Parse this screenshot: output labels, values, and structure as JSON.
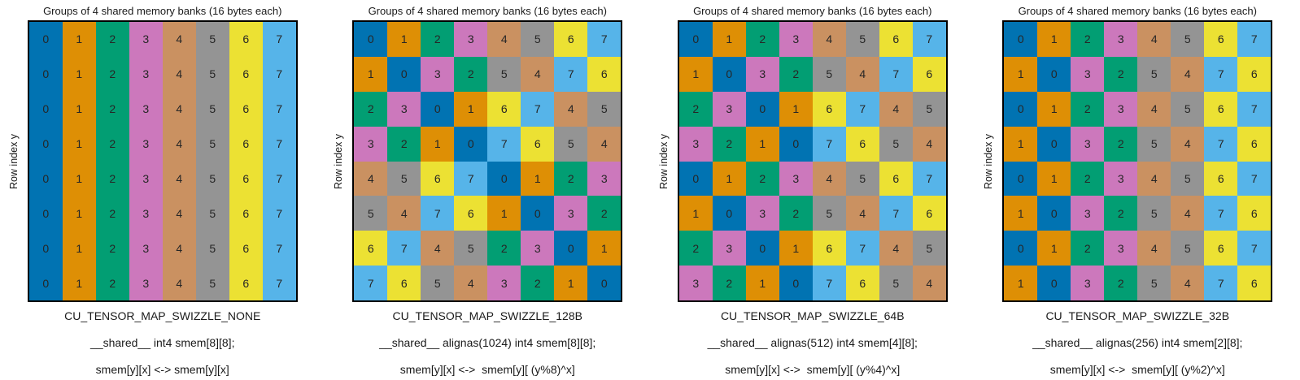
{
  "figure": {
    "background": "#ffffff",
    "text_color": "#1a1a1a",
    "cell_text_color": "#262626",
    "border_color": "#000000"
  },
  "chart_data": {
    "type": "heatmap",
    "panel_title": "Groups of 4 shared memory banks (16 bytes each)",
    "ylabel": "Row index y",
    "grid_rows": 8,
    "grid_cols": 8,
    "value_range": [
      0,
      7
    ],
    "grid_lines": false,
    "bank_colors": [
      "#0173b2",
      "#de8f05",
      "#029e73",
      "#cc78bc",
      "#ca9161",
      "#949494",
      "#ece133",
      "#56b4e9"
    ],
    "panels": [
      {
        "name": "CU_TENSOR_MAP_SWIZZLE_NONE",
        "declaration": "__shared__ int4 smem[8][8];",
        "mapping": "smem[y][x] <-> smem[y][x]",
        "rows": [
          [
            0,
            1,
            2,
            3,
            4,
            5,
            6,
            7
          ],
          [
            0,
            1,
            2,
            3,
            4,
            5,
            6,
            7
          ],
          [
            0,
            1,
            2,
            3,
            4,
            5,
            6,
            7
          ],
          [
            0,
            1,
            2,
            3,
            4,
            5,
            6,
            7
          ],
          [
            0,
            1,
            2,
            3,
            4,
            5,
            6,
            7
          ],
          [
            0,
            1,
            2,
            3,
            4,
            5,
            6,
            7
          ],
          [
            0,
            1,
            2,
            3,
            4,
            5,
            6,
            7
          ],
          [
            0,
            1,
            2,
            3,
            4,
            5,
            6,
            7
          ]
        ]
      },
      {
        "name": "CU_TENSOR_MAP_SWIZZLE_128B",
        "declaration": "__shared__ alignas(1024) int4 smem[8][8];",
        "mapping": "smem[y][x] <->  smem[y][ (y%8)^x]",
        "rows": [
          [
            0,
            1,
            2,
            3,
            4,
            5,
            6,
            7
          ],
          [
            1,
            0,
            3,
            2,
            5,
            4,
            7,
            6
          ],
          [
            2,
            3,
            0,
            1,
            6,
            7,
            4,
            5
          ],
          [
            3,
            2,
            1,
            0,
            7,
            6,
            5,
            4
          ],
          [
            4,
            5,
            6,
            7,
            0,
            1,
            2,
            3
          ],
          [
            5,
            4,
            7,
            6,
            1,
            0,
            3,
            2
          ],
          [
            6,
            7,
            4,
            5,
            2,
            3,
            0,
            1
          ],
          [
            7,
            6,
            5,
            4,
            3,
            2,
            1,
            0
          ]
        ]
      },
      {
        "name": "CU_TENSOR_MAP_SWIZZLE_64B",
        "declaration": "__shared__ alignas(512) int4 smem[4][8];",
        "mapping": "smem[y][x] <->  smem[y][ (y%4)^x]",
        "rows": [
          [
            0,
            1,
            2,
            3,
            4,
            5,
            6,
            7
          ],
          [
            1,
            0,
            3,
            2,
            5,
            4,
            7,
            6
          ],
          [
            2,
            3,
            0,
            1,
            6,
            7,
            4,
            5
          ],
          [
            3,
            2,
            1,
            0,
            7,
            6,
            5,
            4
          ],
          [
            0,
            1,
            2,
            3,
            4,
            5,
            6,
            7
          ],
          [
            1,
            0,
            3,
            2,
            5,
            4,
            7,
            6
          ],
          [
            2,
            3,
            0,
            1,
            6,
            7,
            4,
            5
          ],
          [
            3,
            2,
            1,
            0,
            7,
            6,
            5,
            4
          ]
        ]
      },
      {
        "name": "CU_TENSOR_MAP_SWIZZLE_32B",
        "declaration": "__shared__ alignas(256) int4 smem[2][8];",
        "mapping": "smem[y][x] <->  smem[y][ (y%2)^x]",
        "rows": [
          [
            0,
            1,
            2,
            3,
            4,
            5,
            6,
            7
          ],
          [
            1,
            0,
            3,
            2,
            5,
            4,
            7,
            6
          ],
          [
            0,
            1,
            2,
            3,
            4,
            5,
            6,
            7
          ],
          [
            1,
            0,
            3,
            2,
            5,
            4,
            7,
            6
          ],
          [
            0,
            1,
            2,
            3,
            4,
            5,
            6,
            7
          ],
          [
            1,
            0,
            3,
            2,
            5,
            4,
            7,
            6
          ],
          [
            0,
            1,
            2,
            3,
            4,
            5,
            6,
            7
          ],
          [
            1,
            0,
            3,
            2,
            5,
            4,
            7,
            6
          ]
        ]
      }
    ]
  }
}
